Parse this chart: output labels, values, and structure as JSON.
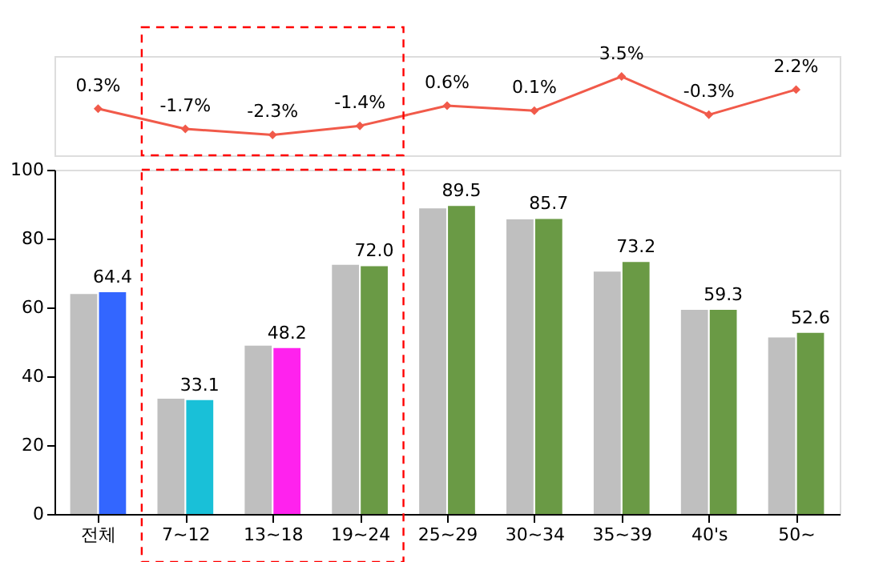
{
  "chart_data": [
    {
      "type": "line",
      "categories": [
        null,
        null,
        null,
        null,
        null,
        null,
        null,
        null,
        null
      ],
      "tick_labels": false,
      "series": [
        {
          "color": "#f15a4a",
          "marker": "diamond",
          "line_style": "solid",
          "values": [
            0.3,
            -1.7,
            -2.3,
            -1.4,
            0.6,
            0.1,
            3.5,
            -0.3,
            2.2
          ],
          "value_labels": [
            "0.3%",
            "-1.7%",
            "-2.3%",
            "-1.4%",
            "0.6%",
            "0.1%",
            "3.5%",
            "-0.3%",
            "2.2%"
          ]
        }
      ]
    },
    {
      "type": "bar",
      "categories": [
        "전체",
        "7~12",
        "13~18",
        "19~24",
        "25~29",
        "30~34",
        "35~39",
        "40's",
        "50~"
      ],
      "ylim": [
        0,
        100
      ],
      "yticks": [
        0,
        20,
        40,
        60,
        80,
        100
      ],
      "grid": false,
      "series": [
        {
          "color": "#bfbfbf",
          "values": [
            63.9,
            33.5,
            48.9,
            72.4,
            88.8,
            85.6,
            70.4,
            59.3,
            51.3
          ]
        },
        {
          "colors": [
            "#3366ff",
            "#19c0d8",
            "#ff22ee",
            "#6a9a45",
            "#6a9a45",
            "#6a9a45",
            "#6a9a45",
            "#6a9a45",
            "#6a9a45"
          ],
          "values": [
            64.4,
            33.1,
            48.2,
            72.0,
            89.5,
            85.7,
            73.2,
            59.3,
            52.6
          ],
          "value_labels": [
            "64.4",
            "33.1",
            "48.2",
            "72.0",
            "89.5",
            "85.7",
            "73.2",
            "59.3",
            "52.6"
          ]
        }
      ]
    }
  ]
}
